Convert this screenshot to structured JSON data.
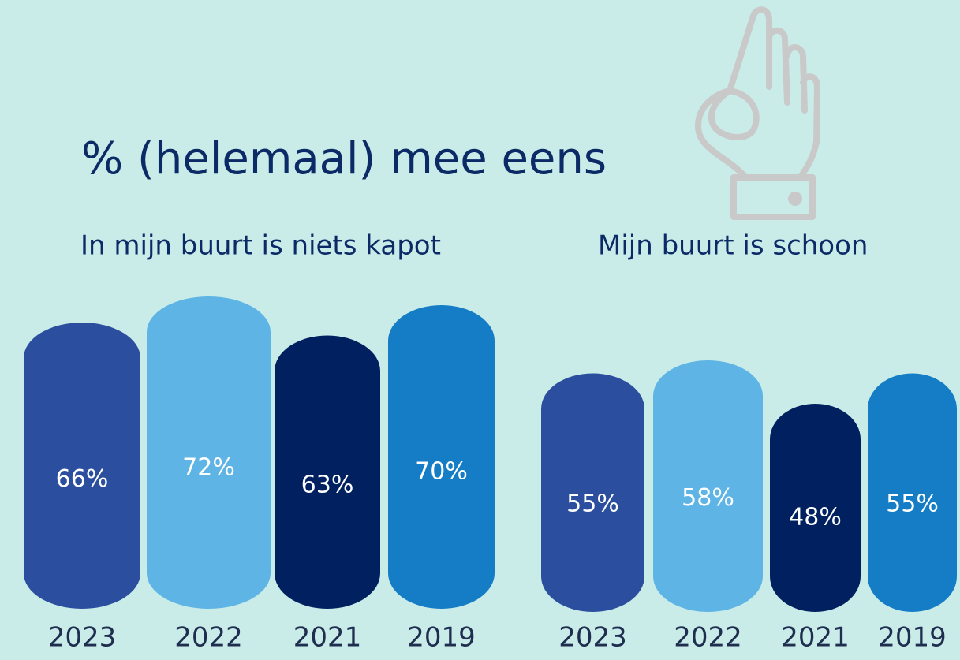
{
  "title": "% (helemaal) mee eens",
  "chart_data": [
    {
      "type": "bar",
      "title": "In mijn buurt is niets kapot",
      "categories": [
        "2023",
        "2022",
        "2021",
        "2019"
      ],
      "values": [
        66,
        72,
        63,
        70
      ],
      "value_labels": [
        "66%",
        "72%",
        "63%",
        "70%"
      ],
      "colors": [
        "#2b4f9e",
        "#5eb4e4",
        "#002060",
        "#147dc5"
      ]
    },
    {
      "type": "bar",
      "title": "Mijn buurt is schoon",
      "categories": [
        "2023",
        "2022",
        "2021",
        "2019"
      ],
      "values": [
        55,
        58,
        48,
        55
      ],
      "value_labels": [
        "55%",
        "58%",
        "48%",
        "55%"
      ],
      "colors": [
        "#2b4f9e",
        "#5eb4e4",
        "#002060",
        "#147dc5"
      ]
    }
  ]
}
